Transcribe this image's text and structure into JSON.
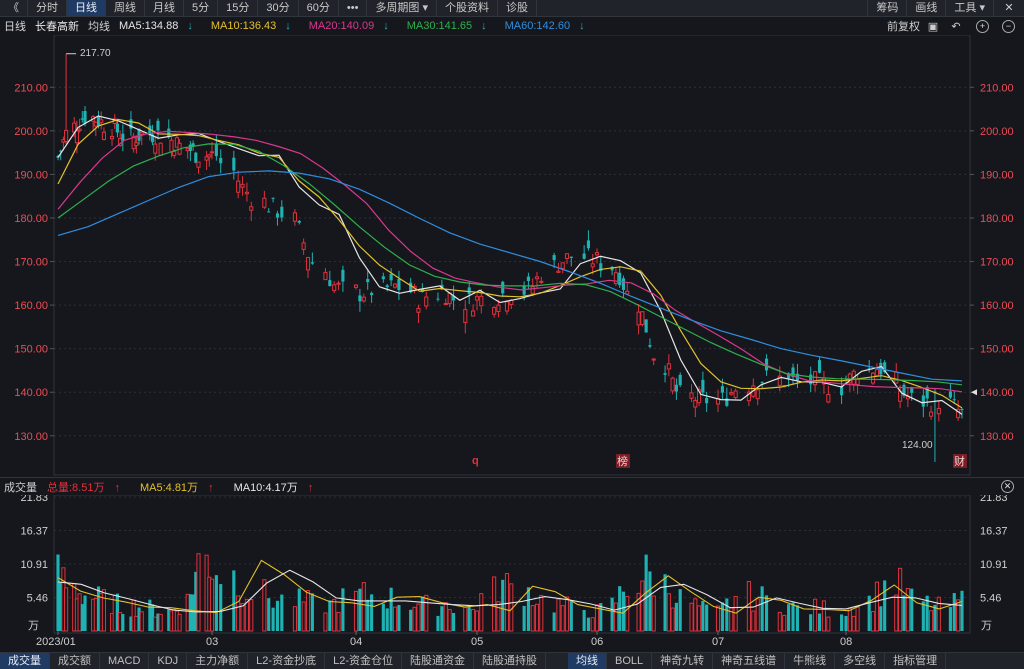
{
  "topbar": {
    "back": "《",
    "periods": [
      "分时",
      "日线",
      "周线",
      "月线",
      "5分",
      "15分",
      "30分",
      "60分"
    ],
    "active_period": "日线",
    "more": "•••",
    "multi_period": "多周期图",
    "stock_info": "个股资料",
    "diagnose": "诊股",
    "right": [
      "筹码",
      "画线",
      "工具"
    ]
  },
  "ma_bar": {
    "period": "日线",
    "stock_name": "长春高新",
    "label": "均线",
    "ma5": "MA5:134.88",
    "ma10": "MA10:136.43",
    "ma20": "MA20:140.09",
    "ma30": "MA30:141.65",
    "ma60": "MA60:142.60",
    "adjust": "前复权"
  },
  "colors": {
    "up": "#e2313c",
    "down": "#1fb2b3",
    "ma5": "#e6e6e6",
    "ma10": "#e3c02c",
    "ma20": "#d9388f",
    "ma30": "#2fb04d",
    "ma60": "#2f8ee0",
    "axis_text": "#ef4b55",
    "grid": "#2c3038",
    "bg": "#15171c"
  },
  "volume_bar": {
    "label": "成交量",
    "total": "总量:8.51万",
    "ma5": "MA5:4.81万",
    "ma10": "MA10:4.17万"
  },
  "bottombar": {
    "left": [
      "成交量",
      "成交额",
      "MACD",
      "KDJ",
      "主力净额",
      "L2-资金抄底",
      "L2-资金仓位",
      "陆股通资金",
      "陆股通持股"
    ],
    "right": [
      "均线",
      "BOLL",
      "神奇九转",
      "神奇五线谱",
      "牛熊线",
      "多空线",
      "指标管理"
    ],
    "active_left": "成交量",
    "active_right": "均线"
  },
  "chart_data": [
    {
      "type": "candlestick",
      "title": "长春高新 日线",
      "x_tick_labels": [
        "2023/01",
        "03",
        "04",
        "05",
        "06",
        "07",
        "08"
      ],
      "x_tick_dates": [
        "2023-01-03",
        "2023-03-01",
        "2023-04-03",
        "2023-05-04",
        "2023-06-01",
        "2023-07-03",
        "2023-08-01"
      ],
      "ylim": [
        121,
        222
      ],
      "y_ticks": [
        130,
        140,
        150,
        160,
        170,
        180,
        190,
        200,
        210
      ],
      "y_tick_labels": [
        "130.00",
        "140.00",
        "150.00",
        "160.00",
        "170.00",
        "180.00",
        "190.00",
        "200.00",
        "210.00"
      ],
      "annotations": {
        "high": "217.70",
        "low": "124.00",
        "markers": [
          "q",
          "榜",
          "财"
        ]
      },
      "grid": true,
      "series": [
        {
          "name": "MA5",
          "values": [
            193.9,
            200.8,
            203.4,
            202.3,
            200.3,
            198.3,
            199.1,
            199.4,
            197.6,
            195.9,
            194.3,
            194.4,
            187.1,
            183.0,
            180.8,
            170.9,
            164.2,
            162.7,
            163.6,
            164.4,
            161.1,
            163.4,
            160.6,
            161.5,
            162.8,
            163.7,
            169.5,
            171.2,
            170.2,
            167.4,
            158.7,
            147.4,
            139.5,
            138.3,
            138.2,
            141.7,
            143.4,
            142.4,
            142.3,
            141.2,
            144.8,
            145.9,
            139.8,
            137.6,
            138.1,
            134.9
          ]
        },
        {
          "name": "MA10",
          "values": [
            187.8,
            196.9,
            201.1,
            202.6,
            201.8,
            199.3,
            199.2,
            198.9,
            197.8,
            196.8,
            194.9,
            193.9,
            188.5,
            184.8,
            179.5,
            173.6,
            169.2,
            166.1,
            163.2,
            163.8,
            163.3,
            162.9,
            162.1,
            161.9,
            162.7,
            164.5,
            166.5,
            168.2,
            168.8,
            167.8,
            162.3,
            154.1,
            146.6,
            142.4,
            140.9,
            140.8,
            141.2,
            142.3,
            142.8,
            142.6,
            143.2,
            143.8,
            142.7,
            141.1,
            139.3,
            136.4
          ]
        },
        {
          "name": "MA20",
          "values": [
            182.0,
            188.2,
            193.7,
            197.8,
            199.3,
            199.9,
            199.6,
            199.2,
            198.6,
            197.8,
            196.4,
            194.8,
            191.5,
            187.6,
            183.3,
            177.2,
            172.3,
            168.5,
            166.2,
            165.1,
            164.1,
            163.5,
            164.0,
            164.6,
            164.9,
            165.7,
            165.1,
            162.6,
            158.8,
            155.8,
            152.9,
            149.9,
            146.5,
            144.3,
            142.7,
            142.2,
            141.7,
            141.3,
            141.1,
            141.0,
            140.8,
            140.1
          ]
        },
        {
          "name": "MA30",
          "values": [
            180.0,
            184.2,
            188.4,
            191.9,
            194.2,
            196.1,
            197.0,
            196.9,
            195.3,
            192.0,
            187.9,
            183.1,
            178.0,
            173.3,
            169.2,
            166.6,
            165.3,
            164.6,
            164.4,
            164.4,
            165.0,
            164.7,
            163.1,
            160.3,
            157.3,
            154.3,
            151.4,
            148.8,
            146.4,
            144.3,
            143.5,
            143.1,
            143.0,
            142.9,
            142.7,
            142.4,
            141.7
          ]
        },
        {
          "name": "MA60",
          "values": [
            176.0,
            178.0,
            181.0,
            184.0,
            187.0,
            189.5,
            190.5,
            190.8,
            190.3,
            189.0,
            186.6,
            183.4,
            179.9,
            176.6,
            174.0,
            172.0,
            170.0,
            167.6,
            165.0,
            162.1,
            159.3,
            156.6,
            154.1,
            152.1,
            150.0,
            148.5,
            147.2,
            145.8,
            144.4,
            143.0,
            142.6
          ]
        }
      ]
    },
    {
      "type": "bar",
      "title": "成交量",
      "unit": "万",
      "ylim": [
        0,
        21.83
      ],
      "y_ticks": [
        5.46,
        10.91,
        16.37,
        21.83
      ],
      "y_tick_labels": [
        "5.46",
        "10.91",
        "16.37",
        "21.83"
      ],
      "series": [
        {
          "name": "MA5",
          "values": [
            8.7,
            6.5,
            5.4,
            4.7,
            3.9,
            3.8,
            3.3,
            3.0,
            4.8,
            11.5,
            9.2,
            6.3,
            4.8,
            4.6,
            4.0,
            5.5,
            5.6,
            4.6,
            3.9,
            4.3,
            3.3,
            7.3,
            6.4,
            4.3,
            3.6,
            2.9,
            6.2,
            9.0,
            6.4,
            4.0,
            2.9,
            5.5,
            5.0,
            3.6,
            3.5,
            3.3,
            5.0,
            7.5,
            4.6,
            3.6,
            4.8
          ]
        },
        {
          "name": "MA10",
          "values": [
            8.0,
            7.6,
            6.2,
            5.3,
            4.3,
            3.4,
            3.1,
            3.2,
            4.1,
            7.8,
            9.9,
            8.0,
            5.4,
            4.9,
            4.9,
            4.9,
            4.6,
            4.3,
            4.1,
            4.3,
            4.8,
            5.6,
            5.1,
            4.4,
            3.4,
            4.4,
            7.1,
            7.6,
            5.9,
            3.8,
            3.9,
            5.4,
            4.5,
            3.7,
            3.6,
            4.6,
            5.5,
            5.4,
            4.5,
            4.17
          ]
        }
      ]
    }
  ]
}
